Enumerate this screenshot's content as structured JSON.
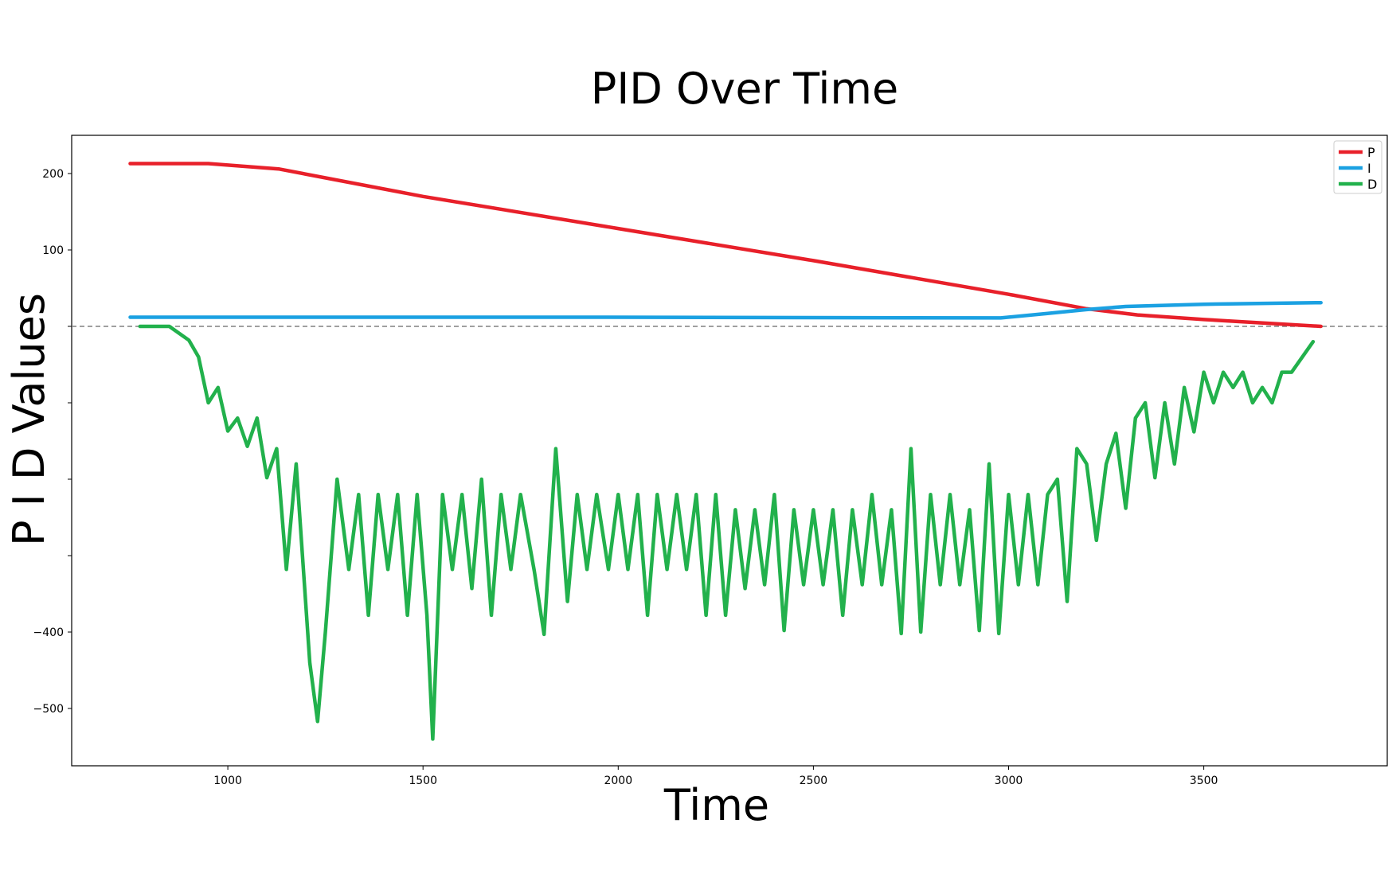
{
  "chart_data": {
    "type": "line",
    "title": "PID Over Time",
    "xlabel": "Time",
    "ylabel": "P I D Values",
    "xlim": [
      600,
      3970
    ],
    "ylim": [
      -575,
      250
    ],
    "x_ticks": [
      1000,
      1500,
      2000,
      2500,
      3000,
      3500
    ],
    "x_tick_labels": [
      "1000",
      "1500",
      "2000",
      "2500",
      "3000",
      "3500"
    ],
    "y_ticks": [
      200,
      100,
      0,
      -100,
      -200,
      -300,
      -400,
      -500
    ],
    "y_tick_labels": [
      "200",
      "100",
      "",
      "",
      "",
      "",
      "−400",
      "−500"
    ],
    "reference_line": {
      "y": 0,
      "style": "dashed",
      "color": "#808080"
    },
    "grid": false,
    "legend_position": "top-right",
    "series": [
      {
        "name": "P",
        "color": "#e8202a",
        "points": [
          [
            750,
            213
          ],
          [
            950,
            213
          ],
          [
            1130,
            206
          ],
          [
            1500,
            170
          ],
          [
            2000,
            128
          ],
          [
            2500,
            86
          ],
          [
            3000,
            42
          ],
          [
            3200,
            23
          ],
          [
            3330,
            15
          ],
          [
            3500,
            9
          ],
          [
            3700,
            3
          ],
          [
            3800,
            0
          ]
        ]
      },
      {
        "name": "I",
        "color": "#1ba1e2",
        "points": [
          [
            750,
            12
          ],
          [
            1900,
            12
          ],
          [
            2980,
            11
          ],
          [
            3100,
            17
          ],
          [
            3200,
            22
          ],
          [
            3300,
            26
          ],
          [
            3500,
            29
          ],
          [
            3800,
            31
          ]
        ]
      },
      {
        "name": "D",
        "color": "#22b14c",
        "points": [
          [
            775,
            0
          ],
          [
            850,
            0
          ],
          [
            900,
            -18
          ],
          [
            925,
            -40
          ],
          [
            950,
            -100
          ],
          [
            975,
            -80
          ],
          [
            1000,
            -137
          ],
          [
            1025,
            -120
          ],
          [
            1050,
            -157
          ],
          [
            1075,
            -120
          ],
          [
            1100,
            -198
          ],
          [
            1125,
            -160
          ],
          [
            1150,
            -318
          ],
          [
            1175,
            -180
          ],
          [
            1210,
            -440
          ],
          [
            1230,
            -517
          ],
          [
            1250,
            -400
          ],
          [
            1280,
            -200
          ],
          [
            1310,
            -318
          ],
          [
            1335,
            -220
          ],
          [
            1360,
            -378
          ],
          [
            1385,
            -220
          ],
          [
            1410,
            -318
          ],
          [
            1435,
            -220
          ],
          [
            1460,
            -378
          ],
          [
            1485,
            -220
          ],
          [
            1510,
            -378
          ],
          [
            1525,
            -540
          ],
          [
            1550,
            -220
          ],
          [
            1575,
            -318
          ],
          [
            1600,
            -220
          ],
          [
            1625,
            -343
          ],
          [
            1650,
            -200
          ],
          [
            1675,
            -378
          ],
          [
            1700,
            -220
          ],
          [
            1725,
            -318
          ],
          [
            1750,
            -220
          ],
          [
            1785,
            -320
          ],
          [
            1810,
            -403
          ],
          [
            1840,
            -160
          ],
          [
            1870,
            -360
          ],
          [
            1895,
            -220
          ],
          [
            1920,
            -318
          ],
          [
            1945,
            -220
          ],
          [
            1975,
            -318
          ],
          [
            2000,
            -220
          ],
          [
            2025,
            -318
          ],
          [
            2050,
            -220
          ],
          [
            2075,
            -378
          ],
          [
            2100,
            -220
          ],
          [
            2125,
            -318
          ],
          [
            2150,
            -220
          ],
          [
            2175,
            -318
          ],
          [
            2200,
            -220
          ],
          [
            2225,
            -378
          ],
          [
            2250,
            -220
          ],
          [
            2275,
            -378
          ],
          [
            2300,
            -240
          ],
          [
            2325,
            -343
          ],
          [
            2350,
            -240
          ],
          [
            2375,
            -338
          ],
          [
            2400,
            -220
          ],
          [
            2425,
            -398
          ],
          [
            2450,
            -240
          ],
          [
            2475,
            -338
          ],
          [
            2500,
            -240
          ],
          [
            2525,
            -338
          ],
          [
            2550,
            -240
          ],
          [
            2575,
            -378
          ],
          [
            2600,
            -240
          ],
          [
            2625,
            -338
          ],
          [
            2650,
            -220
          ],
          [
            2675,
            -338
          ],
          [
            2700,
            -240
          ],
          [
            2725,
            -402
          ],
          [
            2750,
            -160
          ],
          [
            2775,
            -400
          ],
          [
            2800,
            -220
          ],
          [
            2825,
            -338
          ],
          [
            2850,
            -220
          ],
          [
            2875,
            -338
          ],
          [
            2900,
            -240
          ],
          [
            2925,
            -398
          ],
          [
            2950,
            -180
          ],
          [
            2975,
            -402
          ],
          [
            3000,
            -220
          ],
          [
            3025,
            -338
          ],
          [
            3050,
            -220
          ],
          [
            3075,
            -338
          ],
          [
            3100,
            -220
          ],
          [
            3125,
            -200
          ],
          [
            3150,
            -360
          ],
          [
            3175,
            -160
          ],
          [
            3200,
            -180
          ],
          [
            3225,
            -280
          ],
          [
            3250,
            -180
          ],
          [
            3275,
            -140
          ],
          [
            3300,
            -238
          ],
          [
            3325,
            -120
          ],
          [
            3350,
            -100
          ],
          [
            3375,
            -198
          ],
          [
            3400,
            -100
          ],
          [
            3425,
            -180
          ],
          [
            3450,
            -80
          ],
          [
            3475,
            -138
          ],
          [
            3500,
            -60
          ],
          [
            3525,
            -100
          ],
          [
            3550,
            -60
          ],
          [
            3575,
            -80
          ],
          [
            3600,
            -60
          ],
          [
            3625,
            -100
          ],
          [
            3650,
            -80
          ],
          [
            3675,
            -100
          ],
          [
            3700,
            -60
          ],
          [
            3725,
            -60
          ],
          [
            3780,
            -20
          ]
        ]
      }
    ]
  }
}
